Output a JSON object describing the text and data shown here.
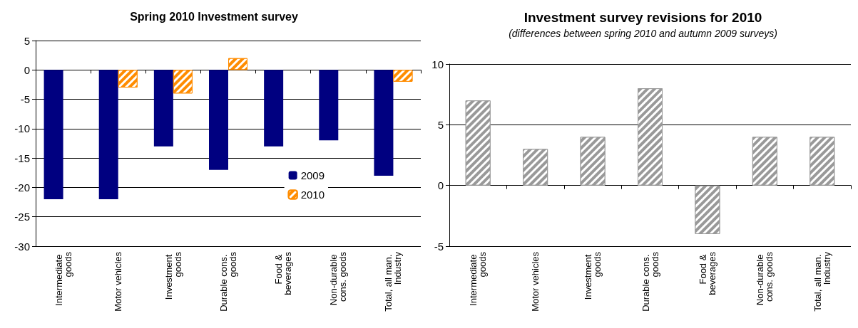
{
  "chart_data": [
    {
      "type": "bar",
      "title": "Spring 2010 Investment survey",
      "categories": [
        "Intermediate goods",
        "Motor vehicles",
        "Investment goods",
        "Durable cons. goods",
        "Food & beverages",
        "Non-durable cons. goods",
        "Total, all man. Industry"
      ],
      "series": [
        {
          "name": "2009",
          "color": "#000080",
          "values": [
            -22,
            -22,
            -13,
            -17,
            -13,
            -12,
            -18
          ]
        },
        {
          "name": "2010",
          "color": "#ff8c00",
          "values": [
            null,
            -3,
            -4,
            2,
            null,
            null,
            -2
          ]
        }
      ],
      "ylim": [
        -30,
        5
      ],
      "yticks": [
        -30,
        -25,
        -20,
        -15,
        -10,
        -5,
        0,
        5
      ],
      "grid": true,
      "legend": "bottom right"
    },
    {
      "type": "bar",
      "title": "Investment survey revisions for 2010",
      "subtitle": "(differences between spring 2010 and autumn 2009 surveys)",
      "categories": [
        "Intermediate goods",
        "Motor vehicles",
        "Investment goods",
        "Durable cons. goods",
        "Food & beverages",
        "Non-durable cons. goods",
        "Total, all man. Industry"
      ],
      "series": [
        {
          "color": "#999999",
          "values": [
            7,
            3,
            4,
            8,
            -4,
            4,
            4
          ]
        }
      ],
      "ylim": [
        -5,
        10
      ],
      "yticks": [
        -5,
        0,
        5,
        10
      ],
      "grid": true
    }
  ]
}
